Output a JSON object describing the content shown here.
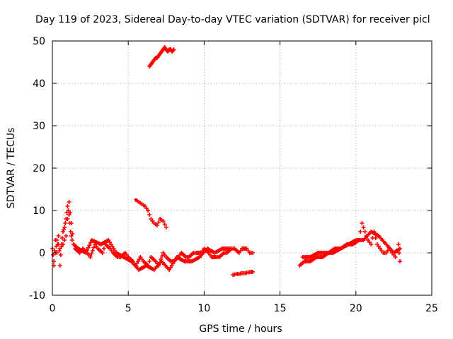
{
  "chart_data": {
    "type": "scatter",
    "title": "Day 119 of 2023, Sidereal Day-to-day VTEC variation (SDTVAR) for receiver picl",
    "xlabel": "GPS time / hours",
    "ylabel": "SDTVAR / TECUs",
    "xlim": [
      0,
      25
    ],
    "ylim": [
      -10,
      50
    ],
    "xticks": [
      0,
      5,
      10,
      15,
      20,
      25
    ],
    "yticks": [
      -10,
      0,
      10,
      20,
      30,
      40,
      50
    ],
    "x_tick_labels": [
      "0",
      "5",
      "10",
      "15",
      "20",
      "25"
    ],
    "y_tick_labels": [
      "-10",
      "0",
      "10",
      "20",
      "30",
      "40",
      "50"
    ],
    "grid": true,
    "marker": "+",
    "color": "#ff0000",
    "series": [
      {
        "name": "main-trace",
        "x": [
          0.0,
          0.1,
          0.2,
          0.3,
          0.4,
          0.5,
          0.6,
          0.7,
          0.8,
          0.9,
          1.0,
          1.1,
          1.2,
          1.3,
          1.5,
          1.8,
          2.0,
          2.3,
          2.5,
          2.8,
          3.0,
          3.3,
          3.5,
          3.8,
          4.0,
          4.3,
          4.5,
          4.8,
          5.0,
          5.3,
          5.5,
          5.8,
          6.0,
          6.3,
          6.5,
          6.8,
          7.0,
          7.3,
          7.5,
          7.8,
          8.0,
          8.3,
          8.5,
          8.8,
          9.0,
          9.3,
          9.5,
          9.8,
          10.0,
          10.3,
          10.5,
          10.8,
          11.0,
          11.3,
          11.5,
          11.8,
          12.0,
          12.3,
          12.5,
          12.8,
          13.0,
          13.2
        ],
        "y": [
          1,
          -2,
          3,
          0,
          4,
          -3,
          2,
          5,
          6,
          8,
          11,
          9,
          5,
          3,
          1,
          0,
          1,
          0,
          -1,
          2,
          1,
          0,
          2,
          1,
          0,
          -1,
          -1,
          0,
          -1,
          -2,
          -3,
          -1,
          -2,
          -3,
          -1,
          -2,
          -3,
          0,
          -1,
          -2,
          -2,
          -1,
          0,
          -1,
          -1,
          0,
          0,
          0,
          1,
          0,
          -1,
          -1,
          -1,
          0,
          0,
          1,
          1,
          0,
          1,
          1,
          0,
          0
        ]
      },
      {
        "name": "main-trace-secondary",
        "x": [
          0.1,
          0.3,
          0.5,
          0.7,
          0.9,
          1.1,
          1.4,
          1.7,
          2.2,
          2.6,
          3.2,
          3.7,
          4.2,
          4.7,
          5.2,
          5.7,
          6.2,
          6.7,
          7.2,
          7.7,
          8.2,
          8.7,
          9.2,
          9.7,
          10.2,
          10.7,
          11.2,
          11.7
        ],
        "y": [
          -3,
          3,
          1,
          2,
          4,
          12,
          2,
          1,
          0,
          3,
          2,
          3,
          0,
          -1,
          -2,
          -4,
          -3,
          -4,
          -2,
          -4,
          -1,
          -2,
          -2,
          -1,
          1,
          0,
          1,
          1
        ]
      },
      {
        "name": "upper-arc",
        "x": [
          6.4,
          6.5,
          6.6,
          6.7,
          6.8,
          6.9,
          7.0,
          7.1,
          7.2,
          7.3,
          7.4,
          7.5,
          7.6,
          7.7,
          7.8,
          7.9,
          8.0
        ],
        "y": [
          44,
          44.5,
          45,
          45.5,
          46,
          46,
          46.5,
          47,
          47.5,
          48,
          48.5,
          48,
          47.5,
          48,
          48,
          47.5,
          48
        ]
      },
      {
        "name": "mid-arc",
        "x": [
          5.5,
          5.7,
          5.9,
          6.1,
          6.3,
          6.5,
          6.7,
          6.9,
          7.1,
          7.3,
          7.5
        ],
        "y": [
          12.5,
          12,
          11.5,
          11,
          10,
          8,
          7,
          6.5,
          8,
          7.5,
          6
        ]
      },
      {
        "name": "low-segment",
        "x": [
          11.9,
          12.1,
          12.3,
          12.5,
          12.7,
          12.9,
          13.1,
          13.2
        ],
        "y": [
          -5.2,
          -5,
          -5,
          -4.8,
          -4.8,
          -4.6,
          -4.5,
          -4.5
        ]
      },
      {
        "name": "evening-trace",
        "x": [
          16.3,
          16.6,
          17.0,
          17.4,
          17.8,
          18.2,
          18.6,
          19.0,
          19.4,
          19.8,
          20.2,
          20.4,
          20.6,
          20.8,
          21.0,
          21.2,
          21.4,
          21.6,
          21.8,
          22.0,
          22.2,
          22.4,
          22.6,
          22.8,
          22.9
        ],
        "y": [
          -3,
          -2,
          -2,
          -1,
          -1,
          0,
          1,
          1,
          2,
          2,
          3,
          7,
          5,
          3,
          2,
          5,
          2,
          1,
          0,
          0,
          1,
          0,
          -1,
          2,
          -2
        ]
      },
      {
        "name": "evening-trace-secondary",
        "x": [
          16.5,
          17.0,
          17.5,
          18.0,
          18.5,
          19.0,
          19.5,
          20.0,
          20.5,
          21.0,
          21.5,
          22.0,
          22.5,
          22.9
        ],
        "y": [
          -1,
          -1,
          0,
          0,
          0,
          1,
          2,
          3,
          3,
          5,
          4,
          2,
          0,
          1
        ]
      }
    ]
  }
}
